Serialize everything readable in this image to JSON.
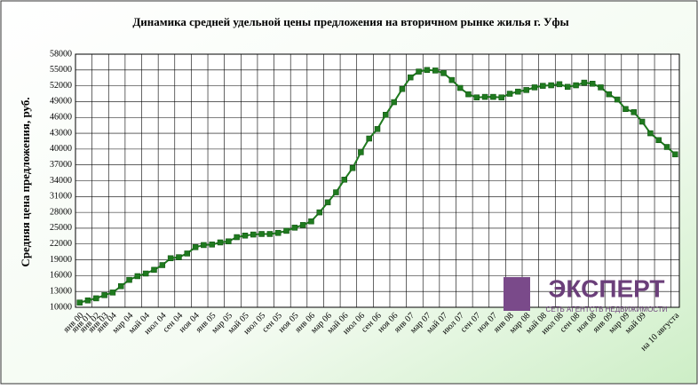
{
  "chart_data": {
    "type": "line",
    "title": "Динамика средней удельной цены предложения на вторичном рынке жилья г. Уфы",
    "y_label": "Средняя цена предложения, руб.",
    "annotations": [
      "ЭКСПЕРТ",
      "СЕТЬ АГЕНТСТВ НЕДВИЖИМОСТИ"
    ],
    "categories": [
      "янв 00",
      "янв 01",
      "янв 02",
      "янв 03",
      "янв 04",
      null,
      "мар 04",
      null,
      "май 04",
      null,
      "июл 04",
      null,
      "сен 04",
      null,
      "ноя 04",
      null,
      "янв 05",
      null,
      "мар 05",
      null,
      "май 05",
      null,
      "июл 05",
      null,
      "сен 05",
      null,
      "ноя 05",
      null,
      "янв 06",
      null,
      "мар 06",
      null,
      "май 06",
      null,
      "июл 06",
      null,
      "сен 06",
      null,
      "ноя 06",
      null,
      "янв 07",
      null,
      "мар 07",
      null,
      "май 07",
      null,
      "июл 07",
      null,
      "сен 07",
      null,
      "ноя 07",
      null,
      "янв 08",
      null,
      "мар 08",
      null,
      "май 08",
      null,
      "июл 08",
      null,
      "сен 08",
      null,
      "ноя 08",
      null,
      "янв 09",
      null,
      "мар 09",
      null,
      "май 09",
      null,
      null,
      null,
      "на 10 августа"
    ],
    "series": [
      {
        "color": "#1f7a1f",
        "values": [
          10900,
          11300,
          11700,
          12300,
          12800,
          14000,
          15200,
          15900,
          16400,
          17100,
          18000,
          19300,
          19500,
          20200,
          21400,
          21800,
          21900,
          22300,
          22500,
          23300,
          23600,
          23800,
          23900,
          23900,
          24100,
          24500,
          25100,
          25600,
          26300,
          28000,
          29900,
          31800,
          34200,
          36400,
          39400,
          42000,
          43800,
          46500,
          48900,
          51400,
          53600,
          54700,
          55000,
          54900,
          54400,
          53100,
          51600,
          50400,
          49800,
          49900,
          49900,
          49800,
          50500,
          50900,
          51200,
          51700,
          52000,
          52100,
          52300,
          51800,
          52100,
          52600,
          52400,
          51700,
          50400,
          49400,
          47600,
          47000,
          45200,
          43000,
          41700,
          40400,
          39000
        ]
      }
    ],
    "ylim": [
      10000,
      58000
    ],
    "yticks": [
      10000,
      13000,
      16000,
      19000,
      22000,
      25000,
      28000,
      31000,
      34000,
      37000,
      40000,
      43000,
      46000,
      49000,
      52000,
      55000,
      58000
    ],
    "grid": true
  }
}
